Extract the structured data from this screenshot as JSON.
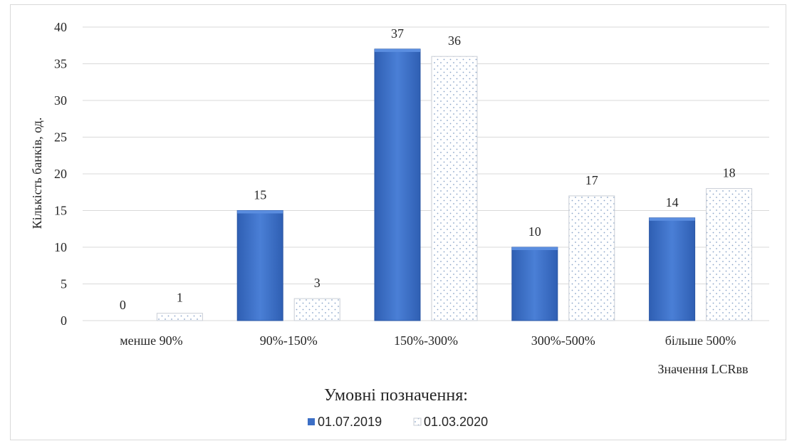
{
  "chart_data": {
    "type": "bar",
    "categories": [
      "менше 90%",
      "90%-150%",
      "150%-300%",
      "300%-500%",
      "більше  500%"
    ],
    "series": [
      {
        "name": "01.07.2019",
        "values": [
          0,
          15,
          37,
          10,
          14
        ],
        "color": "#3c6fc6",
        "pattern": "solid"
      },
      {
        "name": "01.03.2020",
        "values": [
          1,
          3,
          36,
          17,
          18
        ],
        "color": "#ffffff",
        "pattern": "dotted"
      }
    ],
    "title": "",
    "xlabel": "Значення LCRвв",
    "ylabel": "Кількість  банків,  од.",
    "ylim": [
      0,
      40
    ],
    "yticks": [
      0,
      5,
      10,
      15,
      20,
      25,
      30,
      35,
      40
    ],
    "grid": true,
    "legend": {
      "title": "Умовні позначення:",
      "placement": "bottom"
    }
  }
}
